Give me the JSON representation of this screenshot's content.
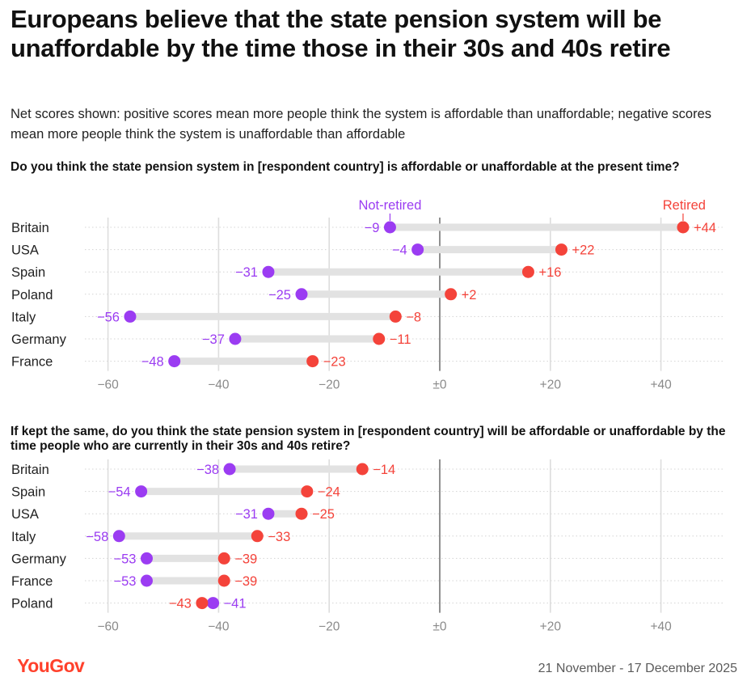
{
  "title": "Europeans believe that the state pension system will be unaffordable by the time those in their 30s and 40s retire",
  "subtitle": "Net scores shown: positive scores mean more people think the system is affordable than unaffordable; negative scores mean more people think the system is unaffordable than affordable",
  "footer": {
    "logo_text": "YouGov",
    "date_range": "21 November - 17 December 2025"
  },
  "colors": {
    "not_retired": "#9b3cf2",
    "retired": "#f4433a",
    "connector": "#e2e2e2",
    "grid": "#dddddd",
    "zero_line": "#222222",
    "logo": "#ff412c"
  },
  "chart_data": [
    {
      "type": "dot-plot",
      "title": "Do you think the state pension system in [respondent country] is affordable or unaffordable at the present time?",
      "series_labels": {
        "not_retired": "Not-retired",
        "retired": "Retired"
      },
      "categories": [
        "Britain",
        "USA",
        "Spain",
        "Poland",
        "Italy",
        "Germany",
        "France"
      ],
      "series": [
        {
          "name": "Not-retired",
          "values": [
            -9,
            -4,
            -31,
            -25,
            -56,
            -37,
            -48
          ]
        },
        {
          "name": "Retired",
          "values": [
            44,
            22,
            16,
            2,
            -8,
            -11,
            -23
          ]
        }
      ],
      "xlim": [
        -60,
        48
      ],
      "xticks": [
        -60,
        -40,
        -20,
        0,
        20,
        40
      ],
      "xtick_labels": [
        "−60",
        "−40",
        "−20",
        "±0",
        "+20",
        "+40"
      ],
      "grid": true
    },
    {
      "type": "dot-plot",
      "title": "If kept the same, do you think the state pension system in [respondent country] will be affordable or unaffordable by the time people who are currently in their 30s and 40s retire?",
      "categories": [
        "Britain",
        "Spain",
        "USA",
        "Italy",
        "Germany",
        "France",
        "Poland"
      ],
      "series": [
        {
          "name": "Not-retired",
          "values": [
            -38,
            -54,
            -31,
            -58,
            -53,
            -53,
            -41
          ]
        },
        {
          "name": "Retired",
          "values": [
            -14,
            -24,
            -25,
            -33,
            -39,
            -39,
            -43
          ]
        }
      ],
      "xlim": [
        -60,
        48
      ],
      "xticks": [
        -60,
        -40,
        -20,
        0,
        20,
        40
      ],
      "xtick_labels": [
        "−60",
        "−40",
        "−20",
        "±0",
        "+20",
        "+40"
      ],
      "grid": true
    }
  ]
}
